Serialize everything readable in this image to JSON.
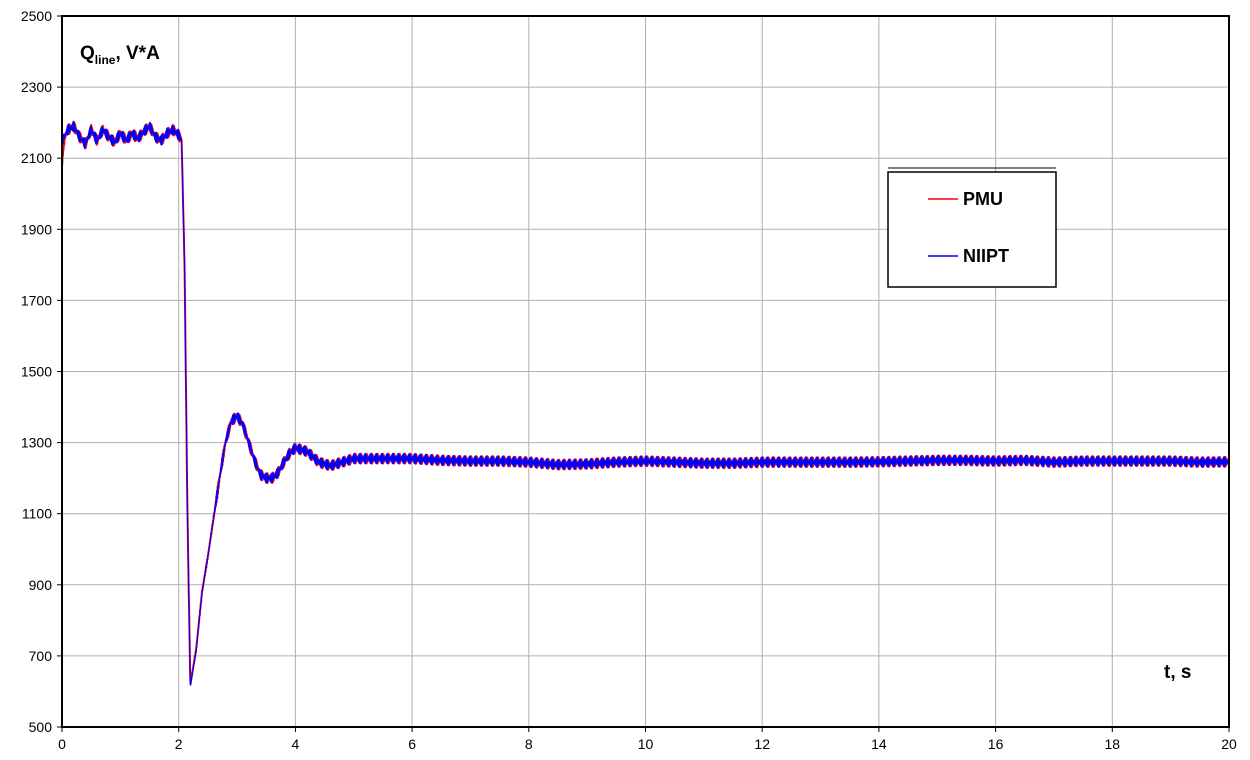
{
  "chart_data": {
    "type": "line",
    "title": "",
    "ylabel": {
      "main": "Q",
      "sub": "line",
      "suffix": ", V*A"
    },
    "xlabel": "t, s",
    "xlim": [
      0,
      20
    ],
    "ylim": [
      500,
      2500
    ],
    "xticks": [
      0,
      2,
      4,
      6,
      8,
      10,
      12,
      14,
      16,
      18,
      20
    ],
    "yticks": [
      500,
      700,
      900,
      1100,
      1300,
      1500,
      1700,
      1900,
      2100,
      2300,
      2500
    ],
    "grid": true,
    "legend_position": "upper-right",
    "colors": {
      "PMU": "#ff0000",
      "NIIPT": "#0000ff",
      "grid": "#b0b0b0",
      "axes": "#000000"
    },
    "series": [
      {
        "name": "PMU",
        "x": [
          0,
          0.02,
          0.05,
          0.1,
          0.2,
          0.3,
          0.4,
          0.5,
          0.6,
          0.7,
          0.8,
          0.9,
          1.0,
          1.1,
          1.2,
          1.3,
          1.4,
          1.5,
          1.6,
          1.7,
          1.8,
          1.9,
          2.0,
          2.05,
          2.1,
          2.15,
          2.2,
          2.3,
          2.4,
          2.5,
          2.6,
          2.7,
          2.8,
          2.9,
          3.0,
          3.1,
          3.2,
          3.3,
          3.4,
          3.5,
          3.6,
          3.7,
          3.8,
          3.9,
          4.0,
          4.2,
          4.4,
          4.6,
          4.8,
          5.0,
          5.5,
          6.0,
          6.5,
          7.0,
          7.5,
          8.0,
          8.5,
          9.0,
          9.5,
          10.0,
          10.5,
          11.0,
          11.5,
          12.0,
          12.5,
          13.0,
          13.5,
          14.0,
          14.5,
          15.0,
          15.5,
          16.0,
          16.5,
          17.0,
          17.5,
          18.0,
          18.5,
          19.0,
          19.5,
          20.0
        ],
        "y": [
          2080,
          2130,
          2160,
          2180,
          2190,
          2160,
          2140,
          2180,
          2150,
          2180,
          2160,
          2145,
          2170,
          2150,
          2170,
          2155,
          2175,
          2190,
          2160,
          2150,
          2170,
          2180,
          2165,
          2150,
          1800,
          1100,
          620,
          720,
          880,
          980,
          1090,
          1200,
          1300,
          1360,
          1375,
          1350,
          1300,
          1250,
          1210,
          1200,
          1200,
          1215,
          1245,
          1270,
          1285,
          1275,
          1245,
          1235,
          1245,
          1255,
          1255,
          1255,
          1250,
          1248,
          1248,
          1245,
          1238,
          1240,
          1245,
          1248,
          1245,
          1242,
          1242,
          1245,
          1245,
          1245,
          1245,
          1246,
          1248,
          1250,
          1250,
          1248,
          1250,
          1245,
          1248,
          1248,
          1248,
          1248,
          1245,
          1246
        ]
      },
      {
        "name": "NIIPT",
        "x": [
          0,
          0.02,
          0.05,
          0.1,
          0.2,
          0.3,
          0.4,
          0.5,
          0.6,
          0.7,
          0.8,
          0.9,
          1.0,
          1.1,
          1.2,
          1.3,
          1.4,
          1.5,
          1.6,
          1.7,
          1.8,
          1.9,
          2.0,
          2.05,
          2.1,
          2.15,
          2.2,
          2.3,
          2.4,
          2.5,
          2.6,
          2.7,
          2.8,
          2.9,
          3.0,
          3.1,
          3.2,
          3.3,
          3.4,
          3.5,
          3.6,
          3.7,
          3.8,
          3.9,
          4.0,
          4.2,
          4.4,
          4.6,
          4.8,
          5.0,
          5.5,
          6.0,
          6.5,
          7.0,
          7.5,
          8.0,
          8.5,
          9.0,
          9.5,
          10.0,
          10.5,
          11.0,
          11.5,
          12.0,
          12.5,
          13.0,
          13.5,
          14.0,
          14.5,
          15.0,
          15.5,
          16.0,
          16.5,
          17.0,
          17.5,
          18.0,
          18.5,
          19.0,
          19.5,
          20.0
        ],
        "y": [
          2150,
          2155,
          2165,
          2180,
          2190,
          2160,
          2140,
          2180,
          2150,
          2180,
          2160,
          2145,
          2170,
          2150,
          2170,
          2155,
          2175,
          2190,
          2160,
          2150,
          2170,
          2180,
          2165,
          2150,
          1800,
          1100,
          615,
          715,
          880,
          980,
          1090,
          1200,
          1300,
          1360,
          1375,
          1350,
          1300,
          1250,
          1210,
          1200,
          1200,
          1215,
          1245,
          1270,
          1285,
          1275,
          1245,
          1235,
          1245,
          1255,
          1255,
          1255,
          1250,
          1248,
          1248,
          1245,
          1238,
          1240,
          1245,
          1248,
          1245,
          1242,
          1242,
          1245,
          1245,
          1245,
          1245,
          1246,
          1248,
          1250,
          1250,
          1248,
          1250,
          1245,
          1248,
          1248,
          1248,
          1248,
          1245,
          1246
        ]
      }
    ]
  }
}
